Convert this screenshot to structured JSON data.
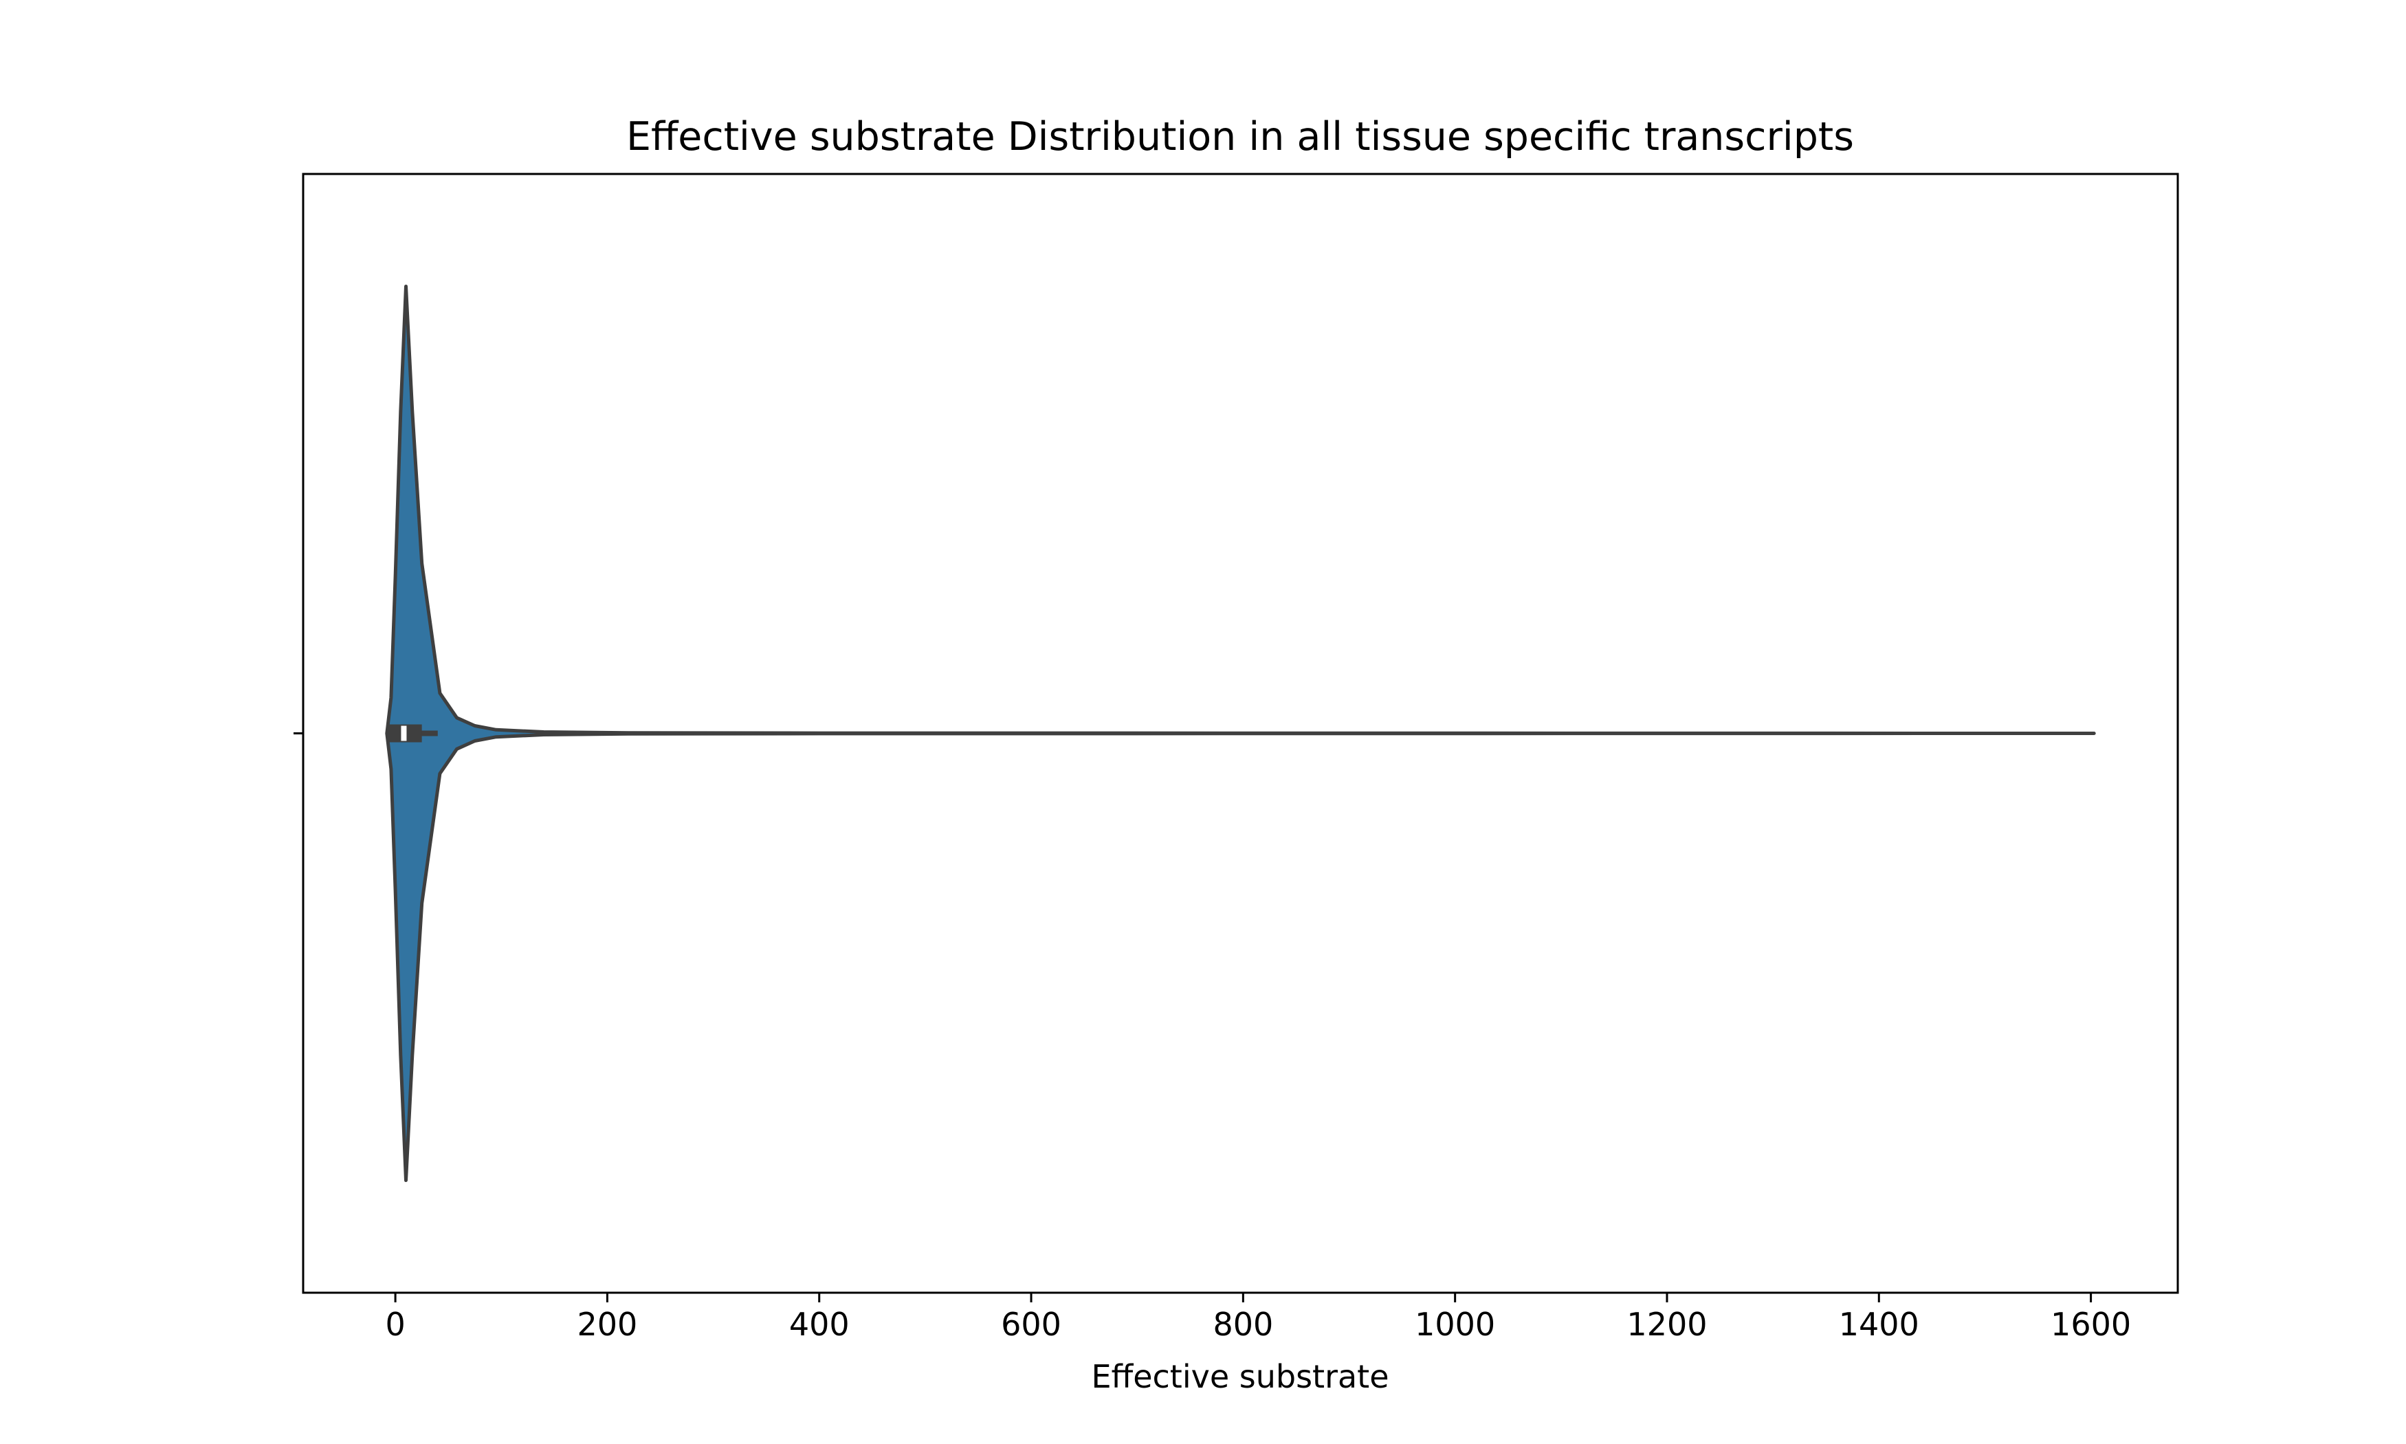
{
  "chart_data": {
    "type": "violin",
    "title": "Effective substrate Distribution in all tissue specific transcripts",
    "xlabel": "Effective substrate",
    "ylabel": "",
    "xlim": [
      -87,
      1682
    ],
    "xticks": [
      0,
      200,
      400,
      600,
      800,
      1000,
      1200,
      1400,
      1600
    ],
    "xtick_labels": [
      "0",
      "200",
      "400",
      "600",
      "800",
      "1000",
      "1200",
      "1400",
      "1600"
    ],
    "orientation": "horizontal",
    "grid": false,
    "legend": "none",
    "colors": {
      "fill": "#3274a1",
      "stroke": "#3f3f3f",
      "median": "#ffffff"
    },
    "violin": {
      "min": -8,
      "max": 1603,
      "density_profile": [
        {
          "x": -8,
          "w": 0.0
        },
        {
          "x": -4,
          "w": 0.08
        },
        {
          "x": 0,
          "w": 0.35
        },
        {
          "x": 5,
          "w": 0.72
        },
        {
          "x": 10,
          "w": 1.0
        },
        {
          "x": 16,
          "w": 0.72
        },
        {
          "x": 25,
          "w": 0.38
        },
        {
          "x": 42,
          "w": 0.09
        },
        {
          "x": 58,
          "w": 0.035
        },
        {
          "x": 75,
          "w": 0.017
        },
        {
          "x": 95,
          "w": 0.008
        },
        {
          "x": 140,
          "w": 0.003
        },
        {
          "x": 220,
          "w": 0.0012
        },
        {
          "x": 400,
          "w": 0.0006
        },
        {
          "x": 800,
          "w": 0.0004
        },
        {
          "x": 1603,
          "w": 0.0
        }
      ],
      "box": {
        "q1": -7,
        "median": 8,
        "q3": 25,
        "whisker_low": -8,
        "whisker_high": 40
      }
    }
  }
}
